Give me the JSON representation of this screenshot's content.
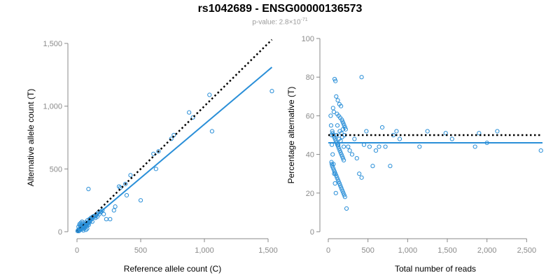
{
  "title": "rs1042689 - ENSG00000136573",
  "subtitle": {
    "prefix": "p-value: 2.8×10",
    "exponent": "-71"
  },
  "colors": {
    "points": "#2a8fd8",
    "fit": "#2a8fd8",
    "reference": "#000000",
    "axis": "#888888"
  },
  "chart_data": [
    {
      "type": "scatter",
      "xlabel": "Reference allele count (C)",
      "ylabel": "Alternative allele count (T)",
      "xlim": [
        0,
        1500
      ],
      "ylim": [
        0,
        1500
      ],
      "xticks": [
        0,
        500,
        1000,
        1500
      ],
      "xtick_labels": [
        "0",
        "500",
        "1,000",
        "1,500"
      ],
      "yticks": [
        0,
        500,
        1000,
        1500
      ],
      "ytick_labels": [
        "0",
        "500",
        "1,000",
        "1,500"
      ],
      "fit_line": {
        "x": [
          0,
          1530
        ],
        "y": [
          0,
          1310
        ]
      },
      "reference_line": {
        "x": [
          0,
          1530
        ],
        "y": [
          0,
          1530
        ]
      },
      "x": [
        1530,
        1040,
        1060,
        910,
        880,
        760,
        740,
        640,
        620,
        600,
        500,
        420,
        390,
        380,
        340,
        330,
        300,
        290,
        260,
        230,
        210,
        200,
        190,
        160,
        150,
        140,
        120,
        110,
        90,
        80,
        70,
        60,
        50,
        40,
        30,
        20,
        10,
        5,
        8,
        15,
        25,
        35,
        45,
        55,
        65,
        75,
        85,
        95,
        105,
        115,
        125,
        135,
        145,
        155,
        165,
        175,
        185,
        12,
        18,
        22,
        28,
        32,
        38,
        42,
        48,
        52,
        58,
        62,
        68,
        72,
        78,
        82,
        88,
        92,
        98,
        102,
        108,
        20,
        30,
        40,
        50,
        60,
        70,
        80,
        15,
        25,
        35,
        45,
        55,
        65
      ],
      "y": [
        1120,
        1090,
        800,
        910,
        950,
        770,
        740,
        640,
        500,
        620,
        250,
        450,
        290,
        380,
        350,
        360,
        200,
        170,
        100,
        100,
        140,
        170,
        160,
        120,
        130,
        120,
        80,
        110,
        340,
        70,
        60,
        50,
        40,
        35,
        30,
        20,
        10,
        5,
        12,
        15,
        20,
        25,
        30,
        45,
        50,
        60,
        70,
        80,
        90,
        100,
        120,
        125,
        110,
        140,
        150,
        140,
        160,
        40,
        20,
        50,
        30,
        45,
        60,
        20,
        70,
        35,
        55,
        40,
        75,
        50,
        45,
        90,
        65,
        55,
        100,
        80,
        105,
        60,
        70,
        80,
        10,
        30,
        15,
        25,
        5,
        15,
        25,
        35,
        45,
        55
      ]
    },
    {
      "type": "scatter",
      "xlabel": "Total number of reads",
      "ylabel": "Percentage alternative (T)",
      "xlim": [
        0,
        2700
      ],
      "ylim": [
        0,
        100
      ],
      "xticks": [
        0,
        500,
        1000,
        1500,
        2000,
        2500
      ],
      "xtick_labels": [
        "0",
        "500",
        "1,000",
        "1,500",
        "2,000",
        "2,500"
      ],
      "yticks": [
        0,
        20,
        40,
        60,
        80,
        100
      ],
      "ytick_labels": [
        "0",
        "20",
        "40",
        "60",
        "80",
        "100"
      ],
      "fit_line": {
        "x": [
          0,
          2700
        ],
        "y": [
          46,
          46
        ]
      },
      "reference_line": {
        "x": [
          0,
          2700
        ],
        "y": [
          50,
          50
        ]
      },
      "x": [
        420,
        80,
        90,
        100,
        120,
        140,
        160,
        60,
        70,
        110,
        130,
        150,
        170,
        180,
        190,
        200,
        210,
        220,
        50,
        55,
        65,
        75,
        85,
        95,
        105,
        115,
        125,
        135,
        145,
        155,
        165,
        175,
        185,
        195,
        40,
        45,
        50,
        60,
        70,
        80,
        90,
        100,
        110,
        120,
        130,
        140,
        150,
        160,
        170,
        180,
        190,
        200,
        210,
        230,
        250,
        270,
        300,
        330,
        360,
        390,
        420,
        450,
        480,
        520,
        560,
        600,
        640,
        680,
        720,
        780,
        820,
        860,
        900,
        1150,
        1250,
        1480,
        1560,
        1850,
        1900,
        2000,
        2130,
        2680,
        30,
        35,
        40,
        45,
        55,
        65,
        75,
        85,
        95,
        105,
        115,
        125,
        135,
        145,
        155,
        165,
        175,
        185,
        195,
        205
      ],
      "y": [
        80,
        79,
        78,
        70,
        68,
        66,
        65,
        64,
        62,
        61,
        60,
        59,
        58,
        57,
        56,
        55,
        54,
        53,
        52,
        51,
        50,
        49,
        48,
        47,
        46,
        45,
        44,
        43,
        42,
        41,
        40,
        39,
        38,
        37,
        36,
        35,
        34,
        33,
        32,
        31,
        30,
        29,
        28,
        27,
        26,
        25,
        24,
        23,
        22,
        21,
        20,
        19,
        18,
        12,
        44,
        42,
        40,
        48,
        38,
        30,
        28,
        45,
        52,
        44,
        34,
        42,
        44,
        54,
        44,
        34,
        50,
        52,
        48,
        44,
        52,
        51,
        48,
        44,
        51,
        46,
        52,
        42,
        60,
        55,
        50,
        45,
        40,
        35,
        30,
        25,
        20,
        50,
        55,
        45,
        48,
        52,
        47,
        51,
        49,
        53,
        44,
        50
      ]
    }
  ]
}
